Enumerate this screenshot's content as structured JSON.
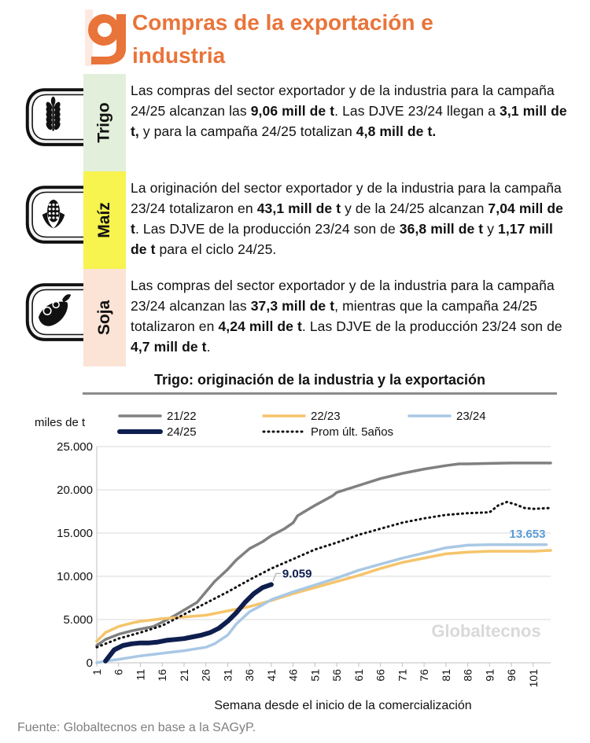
{
  "header": {
    "title": "Compras de la exportación e industria",
    "title_lines": [
      "Compras de la exportación e",
      "industria"
    ],
    "logo_icon": "globaltecnos-g-logo-icon",
    "accent_color": "#e9743a"
  },
  "crops": [
    {
      "label": "Trigo",
      "icon": "wheat-icon",
      "tag_color": "#e2efda",
      "text": [
        {
          "t": "Las compras del sector exportador y de la industria para la campaña 24/25 alcanzan las "
        },
        {
          "t": "9,06 mill de t",
          "b": true
        },
        {
          "t": ". Las DJVE 23/24 llegan a "
        },
        {
          "t": "3,1 mill de t,",
          "b": true
        },
        {
          "t": " y para la campaña 24/25 totalizan "
        },
        {
          "t": "4,8 mill de t.",
          "b": true
        }
      ]
    },
    {
      "label": "Maíz",
      "icon": "corn-icon",
      "tag_color": "#f7f34f",
      "text": [
        {
          "t": "La originación del sector exportador y de la industria para la campaña 23/24 totalizaron en "
        },
        {
          "t": "43,1 mill de t",
          "b": true
        },
        {
          "t": " y de la 24/25 alcanzan "
        },
        {
          "t": "7,04 mill de t",
          "b": true
        },
        {
          "t": ". Las DJVE de la producción 23/24 son de "
        },
        {
          "t": "36,8 mill de t",
          "b": true
        },
        {
          "t": " y "
        },
        {
          "t": "1,17 mill de t",
          "b": true
        },
        {
          "t": " para el ciclo 24/25."
        }
      ]
    },
    {
      "label": "Soja",
      "icon": "soybean-icon",
      "tag_color": "#fbe3d6",
      "text": [
        {
          "t": "Las compras del sector exportador y de la industria para la campaña 23/24 alcanzan las "
        },
        {
          "t": "37,3 mill de t",
          "b": true
        },
        {
          "t": ", mientras que la campaña 24/25 totalizaron en "
        },
        {
          "t": "4,24 mill de t",
          "b": true
        },
        {
          "t": ". Las DJVE de la producción 23/24 son de "
        },
        {
          "t": "4,7 mill de t",
          "b": true
        },
        {
          "t": "."
        }
      ]
    }
  ],
  "chart_data": {
    "type": "line",
    "title": "Trigo: originación de la industria y la exportación",
    "ylabel": "miles de t",
    "xlabel": "Semana desde el inicio de la comercialización",
    "xlim": [
      1,
      105
    ],
    "ylim": [
      0,
      25000
    ],
    "yticks": [
      0,
      5000,
      10000,
      15000,
      20000,
      25000
    ],
    "ytick_labels": [
      "0",
      "5.000",
      "10.000",
      "15.000",
      "20.000",
      "25.000"
    ],
    "xticks": [
      1,
      6,
      11,
      16,
      21,
      26,
      31,
      36,
      41,
      46,
      51,
      56,
      61,
      66,
      71,
      76,
      81,
      86,
      91,
      96,
      101
    ],
    "grid": "horizontal",
    "legend_position": "top",
    "series": [
      {
        "name": "21/22",
        "color": "#808080",
        "style": "solid",
        "width": 3.5,
        "x": [
          1,
          3,
          6,
          9,
          11,
          14,
          16,
          19,
          21,
          24,
          26,
          28,
          31,
          33,
          36,
          39,
          41,
          44,
          46,
          47,
          51,
          55,
          56,
          61,
          66,
          71,
          76,
          81,
          84,
          86,
          91,
          96,
          101,
          105
        ],
        "y": [
          2000,
          2700,
          3300,
          3700,
          3900,
          4200,
          4700,
          5500,
          6100,
          7000,
          8200,
          9400,
          10800,
          11900,
          13200,
          14000,
          14700,
          15500,
          16200,
          17000,
          18200,
          19300,
          19700,
          20500,
          21300,
          21900,
          22400,
          22800,
          23000,
          23000,
          23050,
          23100,
          23100,
          23100
        ]
      },
      {
        "name": "22/23",
        "color": "#f5c46b",
        "style": "solid",
        "width": 3.5,
        "x": [
          1,
          3,
          6,
          9,
          11,
          16,
          21,
          26,
          31,
          36,
          41,
          46,
          51,
          56,
          61,
          66,
          71,
          76,
          81,
          86,
          91,
          96,
          101,
          105
        ],
        "y": [
          2500,
          3500,
          4200,
          4600,
          4800,
          5100,
          5300,
          5500,
          6000,
          6500,
          7200,
          8000,
          8700,
          9400,
          10100,
          10900,
          11600,
          12100,
          12600,
          12800,
          12900,
          12900,
          12900,
          13000
        ]
      },
      {
        "name": "23/24",
        "color": "#a9c8e4",
        "style": "solid",
        "width": 3.5,
        "x": [
          1,
          3,
          6,
          11,
          16,
          21,
          26,
          28,
          31,
          33,
          36,
          39,
          41,
          46,
          51,
          56,
          61,
          66,
          71,
          76,
          81,
          86,
          91,
          93,
          96,
          101,
          104
        ],
        "y": [
          0,
          200,
          400,
          800,
          1100,
          1400,
          1800,
          2200,
          3200,
          4500,
          5900,
          6700,
          7300,
          8200,
          9000,
          9800,
          10700,
          11400,
          12100,
          12700,
          13300,
          13600,
          13650,
          13653,
          13653,
          13653,
          13653
        ]
      },
      {
        "name": "24/25",
        "color": "#0e1e4f",
        "style": "solid",
        "width": 6,
        "x": [
          3,
          5,
          7,
          9,
          11,
          13,
          15,
          17,
          19,
          21,
          23,
          25,
          27,
          29,
          31,
          33,
          35,
          37,
          39,
          41
        ],
        "y": [
          200,
          1500,
          2000,
          2200,
          2300,
          2300,
          2400,
          2600,
          2700,
          2800,
          3000,
          3200,
          3500,
          4000,
          4800,
          5800,
          7000,
          8000,
          8700,
          9059
        ]
      },
      {
        "name": "Prom últ. 5años",
        "color": "#111111",
        "style": "dotted",
        "width": 3,
        "x": [
          1,
          6,
          11,
          16,
          21,
          26,
          31,
          36,
          41,
          46,
          51,
          56,
          61,
          66,
          71,
          76,
          81,
          86,
          91,
          93,
          95,
          97,
          99,
          101,
          105
        ],
        "y": [
          1800,
          2800,
          3500,
          4300,
          5600,
          6900,
          8200,
          9600,
          10900,
          12000,
          13100,
          13900,
          14800,
          15500,
          16200,
          16700,
          17100,
          17300,
          17400,
          18200,
          18600,
          18300,
          17900,
          17800,
          17900
        ]
      }
    ],
    "annotations": [
      {
        "text": "9.059",
        "x": 41,
        "y": 9059,
        "color": "#0e1e4f"
      },
      {
        "text": "13.653",
        "x": 104,
        "y": 13653,
        "color": "#5b9bd5"
      }
    ],
    "watermark": "Globaltecnos"
  },
  "footer": {
    "source": "Fuente: Globaltecnos en base a la SAGyP."
  }
}
